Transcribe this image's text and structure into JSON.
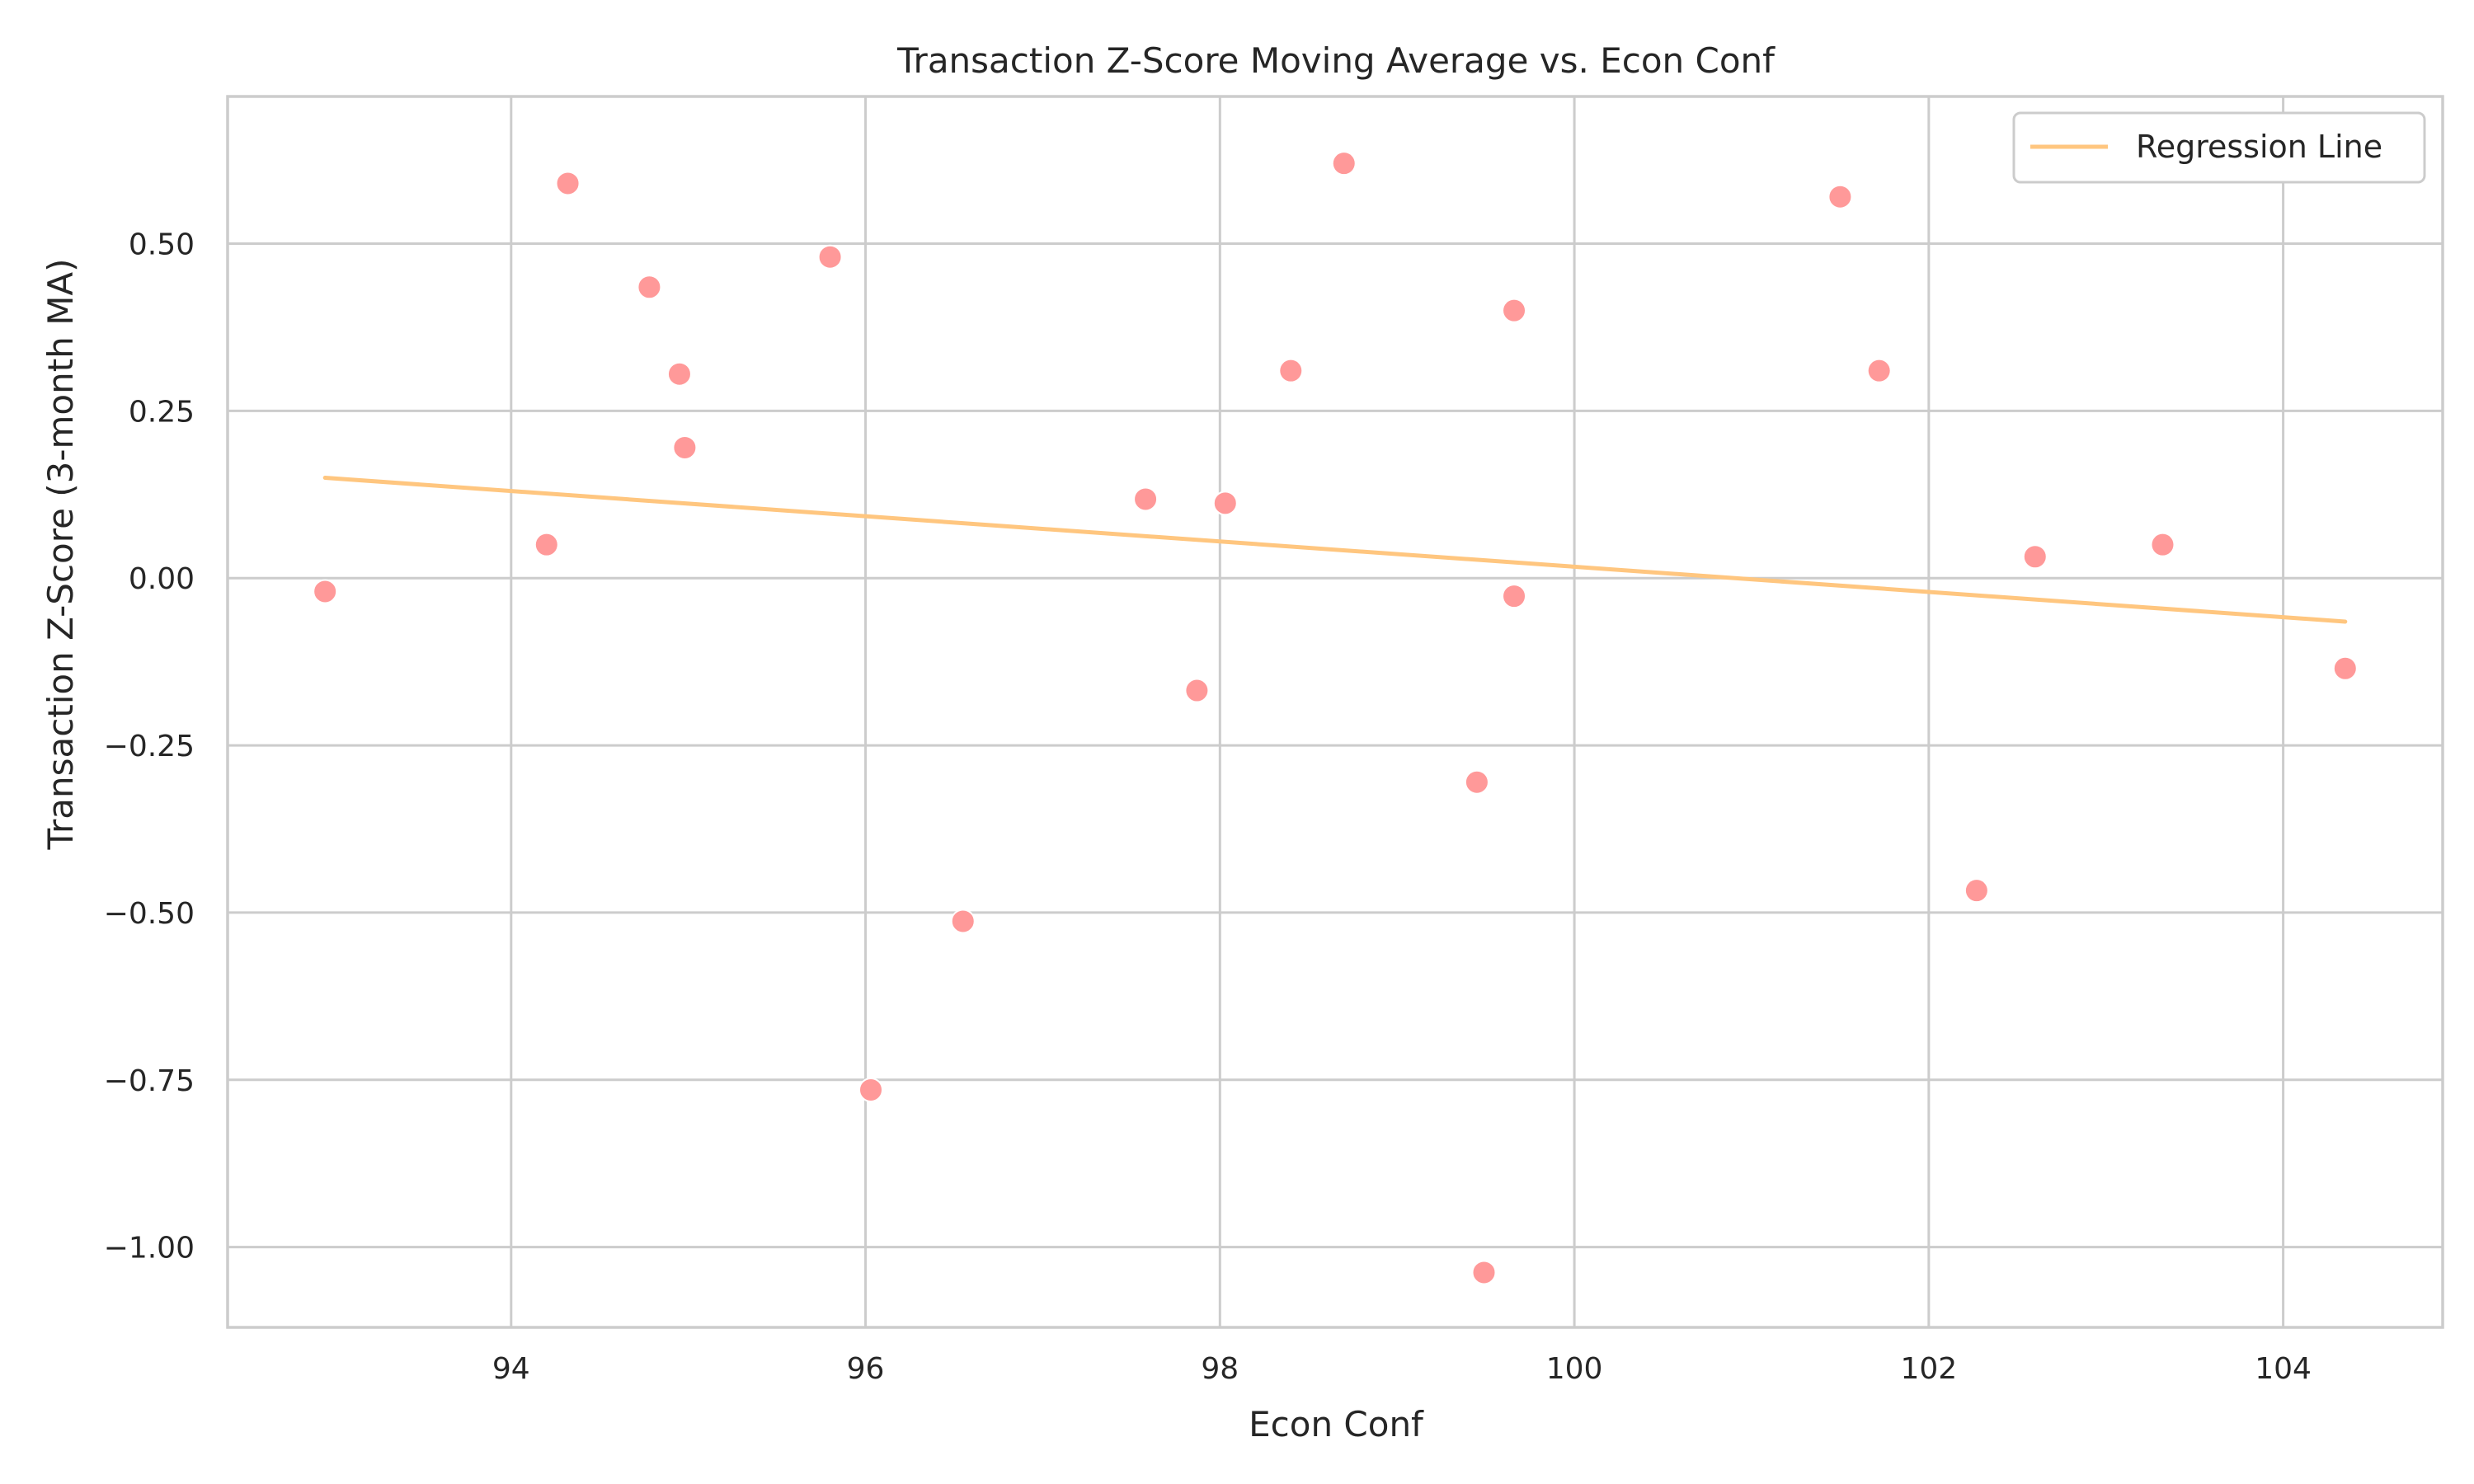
{
  "chart_data": {
    "type": "scatter",
    "title": "Transaction Z-Score Moving Average vs. Econ Conf",
    "xlabel": "Econ Conf",
    "ylabel": "Transaction Z-Score (3-month MA)",
    "xlim": [
      92.4,
      104.9
    ],
    "ylim": [
      -1.12,
      0.72
    ],
    "x_ticks": [
      94,
      96,
      98,
      100,
      102,
      104
    ],
    "x_tick_labels": [
      "94",
      "96",
      "98",
      "100",
      "102",
      "104"
    ],
    "y_ticks": [
      -1.0,
      -0.75,
      -0.5,
      -0.25,
      0.0,
      0.25,
      0.5
    ],
    "y_tick_labels": [
      "−1.00",
      "−0.75",
      "−0.50",
      "−0.25",
      "0.00",
      "0.25",
      "0.50"
    ],
    "grid": true,
    "legend": {
      "position": "top-right",
      "entries": [
        "Regression Line"
      ]
    },
    "points": [
      {
        "x": 92.95,
        "y": -0.02
      },
      {
        "x": 94.2,
        "y": 0.05
      },
      {
        "x": 94.32,
        "y": 0.59
      },
      {
        "x": 94.78,
        "y": 0.435
      },
      {
        "x": 94.95,
        "y": 0.305
      },
      {
        "x": 94.98,
        "y": 0.195
      },
      {
        "x": 95.8,
        "y": 0.48
      },
      {
        "x": 96.03,
        "y": -0.765
      },
      {
        "x": 96.55,
        "y": -0.513
      },
      {
        "x": 97.58,
        "y": 0.118
      },
      {
        "x": 97.87,
        "y": -0.168
      },
      {
        "x": 98.03,
        "y": 0.112
      },
      {
        "x": 98.4,
        "y": 0.31
      },
      {
        "x": 98.7,
        "y": 0.62
      },
      {
        "x": 99.45,
        "y": -0.305
      },
      {
        "x": 99.49,
        "y": -1.038
      },
      {
        "x": 99.66,
        "y": 0.4
      },
      {
        "x": 99.66,
        "y": -0.027
      },
      {
        "x": 101.5,
        "y": 0.57
      },
      {
        "x": 101.72,
        "y": 0.31
      },
      {
        "x": 102.27,
        "y": -0.467
      },
      {
        "x": 102.6,
        "y": 0.032
      },
      {
        "x": 103.32,
        "y": 0.05
      },
      {
        "x": 104.35,
        "y": -0.135
      }
    ],
    "regression_line": {
      "name": "Regression Line",
      "x": [
        92.95,
        104.35
      ],
      "y": [
        0.15,
        -0.065
      ]
    },
    "colors": {
      "points": "#ff9999",
      "line": "#ffc67f",
      "grid": "#cccccc",
      "text": "#262626"
    }
  }
}
